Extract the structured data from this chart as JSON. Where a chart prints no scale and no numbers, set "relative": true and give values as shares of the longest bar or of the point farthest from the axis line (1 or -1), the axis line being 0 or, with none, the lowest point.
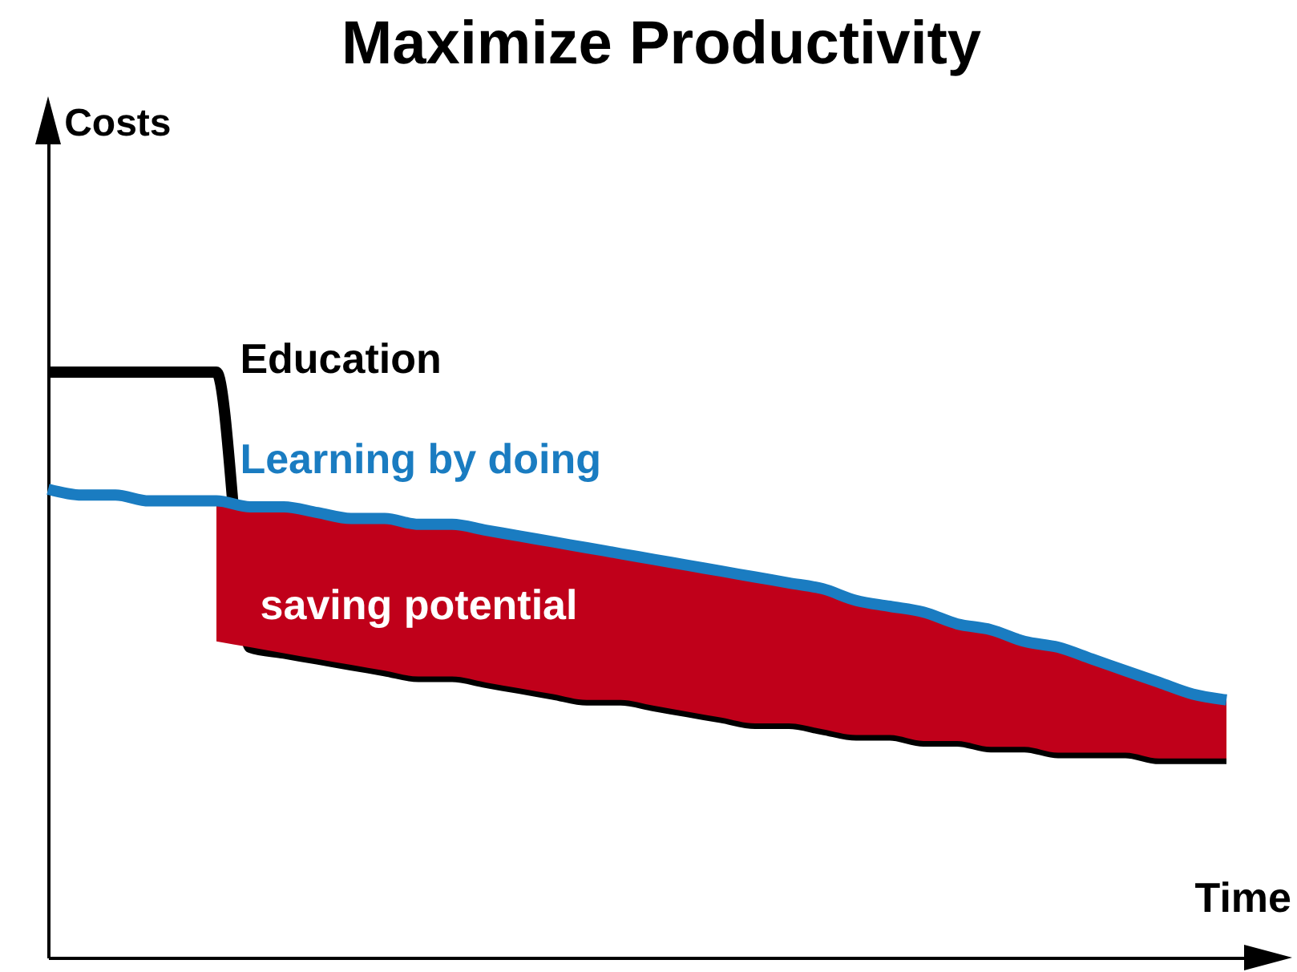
{
  "chart_data": {
    "type": "line",
    "title": "Maximize Productivity",
    "xlabel": "Time",
    "annotations": [
      "Costs",
      "saving potential"
    ],
    "relative": true,
    "legend": false,
    "grid": false,
    "tick_labels": false,
    "marker": "none",
    "line_style": "solid",
    "categories": [
      null,
      null,
      null,
      null,
      null,
      null,
      null,
      null,
      null,
      null,
      null,
      null,
      null,
      null,
      null,
      null,
      null,
      null,
      null,
      null,
      null,
      null,
      null,
      null,
      null,
      null,
      null,
      null,
      null,
      null,
      null,
      null,
      null,
      null,
      null,
      null
    ],
    "series": [
      {
        "name": "Education",
        "color": "#000000",
        "values": [
          1.0,
          1.0,
          1.0,
          1.0,
          1.0,
          1.0,
          0.53,
          0.52,
          0.51,
          0.5,
          0.49,
          0.48,
          0.48,
          0.47,
          0.46,
          0.45,
          0.44,
          0.44,
          0.43,
          0.42,
          0.41,
          0.4,
          0.4,
          0.39,
          0.38,
          0.38,
          0.37,
          0.37,
          0.36,
          0.36,
          0.35,
          0.35,
          0.35,
          0.34,
          0.34,
          0.34
        ]
      },
      {
        "name": "Learning by doing",
        "color": "#1a7cc1",
        "values": [
          0.8,
          0.79,
          0.79,
          0.78,
          0.78,
          0.78,
          0.77,
          0.77,
          0.76,
          0.75,
          0.75,
          0.74,
          0.74,
          0.73,
          0.72,
          0.71,
          0.7,
          0.69,
          0.68,
          0.67,
          0.66,
          0.65,
          0.64,
          0.63,
          0.61,
          0.6,
          0.59,
          0.57,
          0.56,
          0.54,
          0.53,
          0.51,
          0.49,
          0.47,
          0.45,
          0.44
        ],
        "lower": [
          null,
          null,
          null,
          null,
          null,
          0.54,
          0.53,
          0.52,
          0.51,
          0.5,
          0.49,
          0.48,
          0.48,
          0.47,
          0.46,
          0.45,
          0.44,
          0.44,
          0.43,
          0.42,
          0.41,
          0.4,
          0.4,
          0.39,
          0.38,
          0.38,
          0.37,
          0.37,
          0.36,
          0.36,
          0.35,
          0.35,
          0.35,
          0.34,
          0.34,
          0.34
        ],
        "upper": [
          null,
          null,
          null,
          null,
          null,
          0.78,
          0.77,
          0.77,
          0.76,
          0.75,
          0.75,
          0.74,
          0.74,
          0.73,
          0.72,
          0.71,
          0.7,
          0.69,
          0.68,
          0.67,
          0.66,
          0.65,
          0.64,
          0.63,
          0.61,
          0.6,
          0.59,
          0.57,
          0.56,
          0.54,
          0.53,
          0.51,
          0.49,
          0.47,
          0.45,
          0.44
        ]
      }
    ]
  }
}
